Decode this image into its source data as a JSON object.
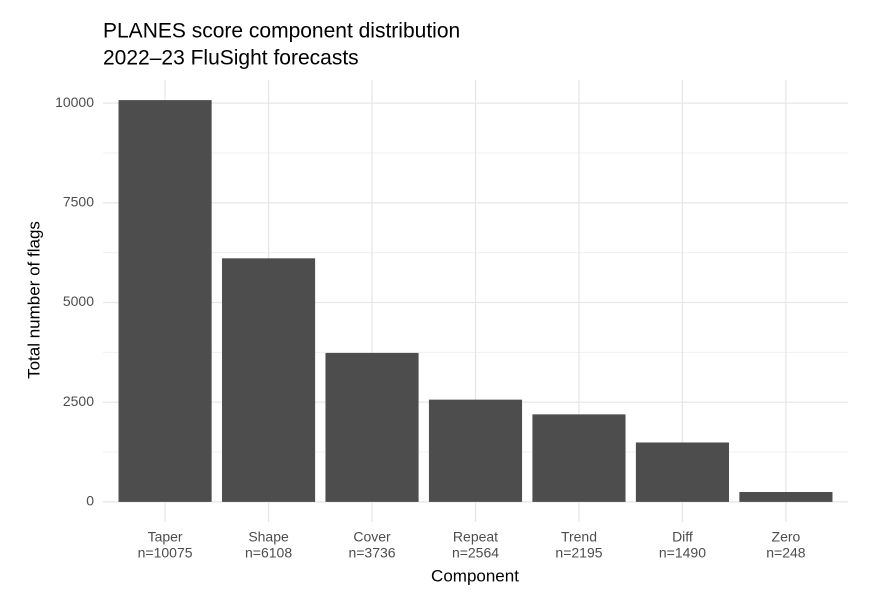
{
  "chart_data": {
    "type": "bar",
    "title": "PLANES score component distribution",
    "subtitle": "2022–23 FluSight forecasts",
    "x_label": "Component",
    "y_label": "Total number of flags",
    "categories": [
      "Taper",
      "Shape",
      "Cover",
      "Repeat",
      "Trend",
      "Diff",
      "Zero"
    ],
    "values": [
      10075,
      6108,
      3736,
      2564,
      2195,
      1490,
      248
    ],
    "value_labels": [
      "n=10075",
      "n=6108",
      "n=3736",
      "n=2564",
      "n=2195",
      "n=1490",
      "n=248"
    ],
    "color": "#4d4d4d",
    "ylim": [
      -504,
      10579
    ],
    "yticks": [
      0,
      2500,
      5000,
      7500,
      10000
    ],
    "grid": true
  }
}
